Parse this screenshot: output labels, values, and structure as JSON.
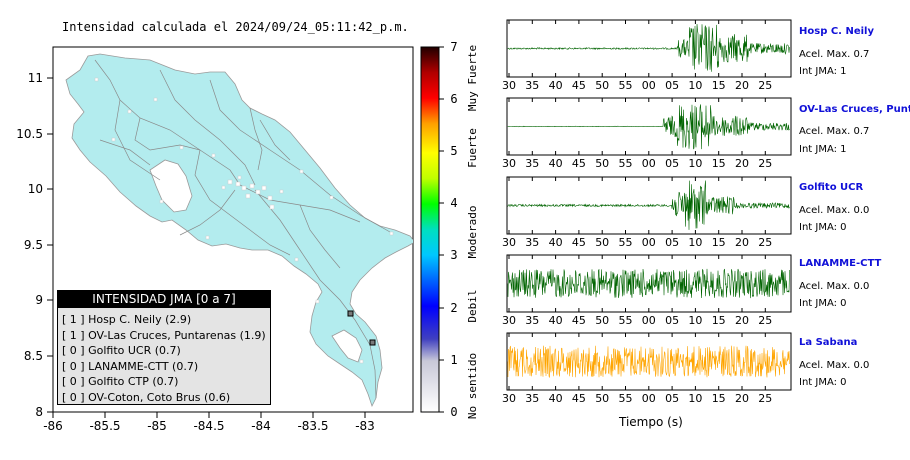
{
  "map": {
    "title": "Intensidad calculada el 2024/09/24_05:11:42_p.m.",
    "x_ticks": [
      "-86",
      "-85.5",
      "-85",
      "-84.5",
      "-84",
      "-83.5",
      "-83"
    ],
    "y_ticks": [
      "11",
      "10.5",
      "10",
      "9.5",
      "9",
      "8.5",
      "8"
    ],
    "xlim": [
      -86,
      -82.5
    ],
    "ylim": [
      8,
      11.3
    ],
    "land_color": "#b3ecee"
  },
  "colorbar": {
    "ticks": [
      "0",
      "1",
      "2",
      "3",
      "4",
      "5",
      "6",
      "7"
    ],
    "descriptions": [
      "No sentido",
      "Debil",
      "Moderado",
      "Fuerte",
      "Muy Fuerte"
    ],
    "range": [
      0,
      7
    ]
  },
  "legend": {
    "title": "INTENSIDAD JMA [0 a 7]",
    "items": [
      {
        "level": "[ 1 ]",
        "text": "Hosp C. Neily (2.9)"
      },
      {
        "level": "[ 1 ]",
        "text": "OV-Las Cruces, Puntarenas (1.9)"
      },
      {
        "level": "[ 0 ]",
        "text": "Golfito UCR (0.7)"
      },
      {
        "level": "[ 0 ]",
        "text": "LANAMME-CTT (0.7)"
      },
      {
        "level": "[ 0 ]",
        "text": "Golfito CTP (0.7)"
      },
      {
        "level": "[ 0 ]",
        "text": "OV-Coton, Coto Brus (0.6)"
      }
    ]
  },
  "waveforms": {
    "x_axis_label": "Tiempo (s)",
    "x_ticks": [
      "30",
      "35",
      "40",
      "45",
      "50",
      "55",
      "00",
      "05",
      "10",
      "15",
      "20",
      "25"
    ],
    "stations": [
      {
        "name": "Hosp C. Neily",
        "accel": "Acel. Max. 0.7",
        "jma": "Int JMA: 1",
        "color": "#006400"
      },
      {
        "name": "OV-Las Cruces, Puntar",
        "accel": "Acel. Max. 0.7",
        "jma": "Int JMA: 1",
        "color": "#006400"
      },
      {
        "name": "Golfito UCR",
        "accel": "Acel. Max. 0.0",
        "jma": "Int JMA: 0",
        "color": "#006400"
      },
      {
        "name": "LANAMME-CTT",
        "accel": "Acel. Max. 0.0",
        "jma": "Int JMA: 0",
        "color": "#006400"
      },
      {
        "name": "La Sabana",
        "accel": "Acel. Max. 0.0",
        "jma": "Int JMA: 0",
        "color": "#ffa500"
      }
    ]
  },
  "chart_data": [
    {
      "type": "scatter",
      "title": "Intensidad calculada el 2024/09/24_05:11:42_p.m.",
      "xlabel": "",
      "ylabel": "",
      "xlim": [
        -86,
        -82.5
      ],
      "ylim": [
        8,
        11.3
      ],
      "x_ticks": [
        -86,
        -85.5,
        -85,
        -84.5,
        -84,
        -83.5,
        -83
      ],
      "y_ticks": [
        11,
        10.5,
        10,
        9.5,
        9,
        8.5,
        8
      ],
      "series": [
        {
          "name": "INTENSIDAD JMA [0 a 7]",
          "points": [
            {
              "label": "Hosp C. Neily (2.9)",
              "intensity": 1
            },
            {
              "label": "OV-Las Cruces, Puntarenas (1.9)",
              "intensity": 1
            },
            {
              "label": "Golfito UCR (0.7)",
              "intensity": 0
            },
            {
              "label": "LANAMME-CTT (0.7)",
              "intensity": 0
            },
            {
              "label": "Golfito CTP (0.7)",
              "intensity": 0
            },
            {
              "label": "OV-Coton, Coto Brus (0.6)",
              "intensity": 0
            }
          ]
        }
      ],
      "colorbar": {
        "range": [
          0,
          7
        ],
        "labels": [
          "No sentido",
          "Debil",
          "Moderado",
          "Fuerte",
          "Muy Fuerte"
        ]
      }
    },
    {
      "type": "line",
      "xlabel": "Tiempo (s)",
      "x_ticks": [
        "30",
        "35",
        "40",
        "45",
        "50",
        "55",
        "00",
        "05",
        "10",
        "15",
        "20",
        "25"
      ],
      "series": [
        {
          "name": "Hosp C. Neily",
          "peak_accel": 0.7,
          "jma": 1
        },
        {
          "name": "OV-Las Cruces, Puntar",
          "peak_accel": 0.7,
          "jma": 1
        },
        {
          "name": "Golfito UCR",
          "peak_accel": 0.0,
          "jma": 0
        },
        {
          "name": "LANAMME-CTT",
          "peak_accel": 0.0,
          "jma": 0
        },
        {
          "name": "La Sabana",
          "peak_accel": 0.0,
          "jma": 0
        }
      ]
    }
  ]
}
